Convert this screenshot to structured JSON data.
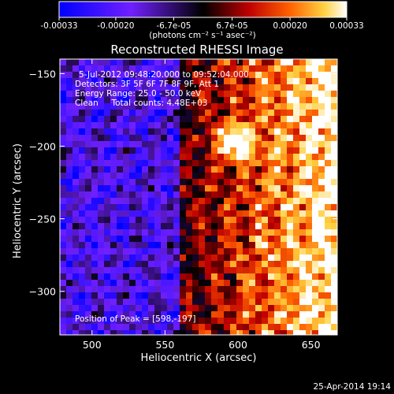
{
  "chart_data": {
    "type": "heatmap",
    "title": "Reconstructed RHESSI Image",
    "xlabel": "Heliocentric X (arcsec)",
    "ylabel": "Heliocentric Y (arcsec)",
    "xlim": [
      478,
      668
    ],
    "ylim": [
      -330,
      -140
    ],
    "x_ticks": [
      500,
      550,
      600,
      650
    ],
    "y_ticks": [
      -150,
      -200,
      -250,
      -300
    ],
    "colorbar": {
      "range": [
        -0.00033,
        0.00033
      ],
      "ticks": [
        "-0.00033",
        "-0.00020",
        "-6.7e-05",
        "6.7e-05",
        "0.00020",
        "0.00033"
      ],
      "tick_values": [
        -0.00033,
        -0.0002,
        -6.7e-05,
        6.7e-05,
        0.0002,
        0.00033
      ],
      "units_label": "(photons cm⁻² s⁻¹ asec⁻²)",
      "colormap": [
        "#0000ff",
        "#7020ff",
        "#000000",
        "#c00000",
        "#ff6000",
        "#ffd040",
        "#ffffff"
      ]
    },
    "annotations": [
      "5-Jul-2012 09:48:20.000 to 09:52:04.000",
      "Detectors: 3F 5F 6F 7F 8F 9F, Att 1",
      "Energy Range: 25.0 - 50.0 keV",
      "Clean     Total counts: 4.48E+03",
      "Position of Peak = [598,-197]"
    ],
    "peak": {
      "x": 598,
      "y": -197
    }
  },
  "footer": {
    "date": "25-Apr-2014 19:14"
  }
}
